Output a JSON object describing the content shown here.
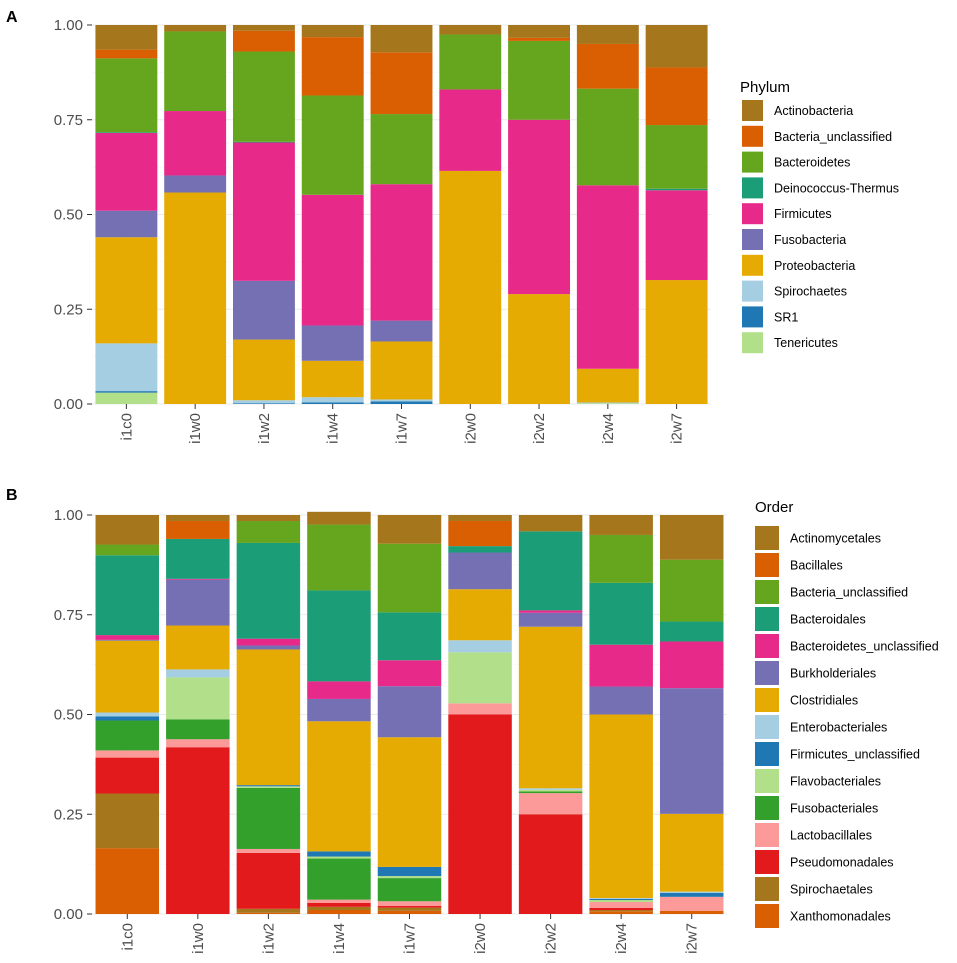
{
  "chart_data": [
    {
      "panel": "A",
      "type": "bar",
      "stacked": true,
      "legend_title": "Phylum",
      "legend_position": "right",
      "ylim": [
        0,
        1
      ],
      "yticks": [
        "0.00",
        "0.25",
        "0.50",
        "0.75",
        "1.00"
      ],
      "yticks_values": [
        0,
        0.25,
        0.5,
        0.75,
        1
      ],
      "grid": true,
      "categories": [
        "i1c0",
        "i1w0",
        "i1w2",
        "i1w4",
        "i1w7",
        "i2w0",
        "i2w2",
        "i2w4",
        "i2w7"
      ],
      "series": [
        {
          "name": "Tenericutes",
          "color": "#b2df8a",
          "values": [
            0.03,
            0,
            0,
            0,
            0,
            0,
            0,
            0.002,
            0
          ]
        },
        {
          "name": "SR1",
          "color": "#1f78b4",
          "values": [
            0.004,
            0,
            0.002,
            0.004,
            0.007,
            0,
            0,
            0,
            0
          ]
        },
        {
          "name": "Spirochaetes",
          "color": "#a6cee3",
          "values": [
            0.126,
            0,
            0.008,
            0.014,
            0.005,
            0,
            0,
            0.002,
            0
          ]
        },
        {
          "name": "Proteobacteria",
          "color": "#e6ab02",
          "values": [
            0.28,
            0.558,
            0.16,
            0.096,
            0.153,
            0.615,
            0.29,
            0.089,
            0.327
          ]
        },
        {
          "name": "Fusobacteria",
          "color": "#7570b3",
          "values": [
            0.07,
            0.045,
            0.155,
            0.093,
            0.055,
            0,
            0,
            0,
            0
          ]
        },
        {
          "name": "Firmicutes",
          "color": "#e7298a",
          "values": [
            0.205,
            0.17,
            0.365,
            0.345,
            0.36,
            0.215,
            0.46,
            0.484,
            0.237
          ]
        },
        {
          "name": "Deinococcus-Thermus",
          "color": "#1b9e77",
          "values": [
            0.002,
            0,
            0.002,
            0,
            0,
            0,
            0,
            0,
            0.004
          ]
        },
        {
          "name": "Bacteroidetes",
          "color": "#66a61e",
          "values": [
            0.195,
            0.21,
            0.238,
            0.262,
            0.185,
            0.145,
            0.208,
            0.255,
            0.168
          ]
        },
        {
          "name": "Bacteria_unclassified",
          "color": "#d95f02",
          "values": [
            0.023,
            0,
            0.055,
            0.154,
            0.163,
            0,
            0.008,
            0.118,
            0.152
          ]
        },
        {
          "name": "Actinobacteria",
          "color": "#a6761d",
          "values": [
            0.065,
            0.017,
            0.015,
            0.032,
            0.072,
            0.025,
            0.034,
            0.05,
            0.112
          ]
        }
      ],
      "legend_items": [
        "Actinobacteria",
        "Bacteria_unclassified",
        "Bacteroidetes",
        "Deinococcus-Thermus",
        "Firmicutes",
        "Fusobacteria",
        "Proteobacteria",
        "Spirochaetes",
        "SR1",
        "Tenericutes"
      ]
    },
    {
      "panel": "B",
      "type": "bar",
      "stacked": true,
      "legend_title": "Order",
      "legend_position": "right",
      "ylim": [
        0,
        1
      ],
      "yticks": [
        "0.00",
        "0.25",
        "0.50",
        "0.75",
        "1.00"
      ],
      "yticks_values": [
        0,
        0.25,
        0.5,
        0.75,
        1
      ],
      "grid": true,
      "categories": [
        "i1c0",
        "i1w0",
        "i1w2",
        "i1w4",
        "i1w7",
        "i2w0",
        "i2w2",
        "i2w4",
        "i2w7"
      ],
      "series": [
        {
          "name": "Xanthomonadales",
          "color": "#d95f02",
          "values": [
            0.165,
            0,
            0.003,
            0.01,
            0.008,
            0,
            0,
            0.007,
            0.008
          ]
        },
        {
          "name": "Spirochaetales",
          "color": "#a6761d",
          "values": [
            0.137,
            0,
            0.01,
            0.008,
            0.008,
            0,
            0,
            0.003,
            0
          ]
        },
        {
          "name": "Pseudomonadales",
          "color": "#e31a1c",
          "values": [
            0.09,
            0.418,
            0.14,
            0.01,
            0.004,
            0.5,
            0.25,
            0.005,
            0
          ]
        },
        {
          "name": "Lactobacillales",
          "color": "#fb9a99",
          "values": [
            0.018,
            0.02,
            0.01,
            0.008,
            0.012,
            0.028,
            0.053,
            0.015,
            0.035
          ]
        },
        {
          "name": "Fusobacteriales",
          "color": "#33a02c",
          "values": [
            0.075,
            0.05,
            0.153,
            0.103,
            0.058,
            0,
            0.004,
            0,
            0
          ]
        },
        {
          "name": "Flavobacteriales",
          "color": "#b2df8a",
          "values": [
            0,
            0.105,
            0.004,
            0.005,
            0.005,
            0.128,
            0.004,
            0.005,
            0
          ]
        },
        {
          "name": "Firmicutes_unclassified",
          "color": "#1f78b4",
          "values": [
            0.01,
            0,
            0.003,
            0.013,
            0.023,
            0,
            0,
            0.003,
            0.01
          ]
        },
        {
          "name": "Enterobacteriales",
          "color": "#a6cee3",
          "values": [
            0.01,
            0.02,
            0,
            0,
            0,
            0.03,
            0.004,
            0.002,
            0.003
          ]
        },
        {
          "name": "Clostridiales",
          "color": "#e6ab02",
          "values": [
            0.18,
            0.11,
            0.34,
            0.326,
            0.325,
            0.128,
            0.405,
            0.46,
            0.195
          ]
        },
        {
          "name": "Burkholderiales",
          "color": "#7570b3",
          "values": [
            0.002,
            0.115,
            0.01,
            0.056,
            0.128,
            0.092,
            0.035,
            0.07,
            0.315
          ]
        },
        {
          "name": "Bacteroidetes_unclassified",
          "color": "#e7298a",
          "values": [
            0.012,
            0.002,
            0.017,
            0.044,
            0.065,
            0,
            0.006,
            0.105,
            0.117
          ]
        },
        {
          "name": "Bacteroidales",
          "color": "#1b9e77",
          "values": [
            0.2,
            0.1,
            0.24,
            0.228,
            0.12,
            0.016,
            0.198,
            0.155,
            0.05
          ]
        },
        {
          "name": "Bacteria_unclassified",
          "color": "#66a61e",
          "values": [
            0.027,
            0,
            0.055,
            0.165,
            0.172,
            0,
            0,
            0.12,
            0.155
          ]
        },
        {
          "name": "Bacillales",
          "color": "#d95f02",
          "values": [
            0,
            0.045,
            0,
            0,
            0,
            0.063,
            0,
            0,
            0
          ]
        },
        {
          "name": "Actinomycetales",
          "color": "#a6761d",
          "values": [
            0.074,
            0.015,
            0.015,
            0.032,
            0.072,
            0.015,
            0.041,
            0.05,
            0.112
          ]
        }
      ],
      "legend_items": [
        "Actinomycetales",
        "Bacillales",
        "Bacteria_unclassified",
        "Bacteroidales",
        "Bacteroidetes_unclassified",
        "Burkholderiales",
        "Clostridiales",
        "Enterobacteriales",
        "Firmicutes_unclassified",
        "Flavobacteriales",
        "Fusobacteriales",
        "Lactobacillales",
        "Pseudomonadales",
        "Spirochaetales",
        "Xanthomonadales"
      ]
    }
  ]
}
